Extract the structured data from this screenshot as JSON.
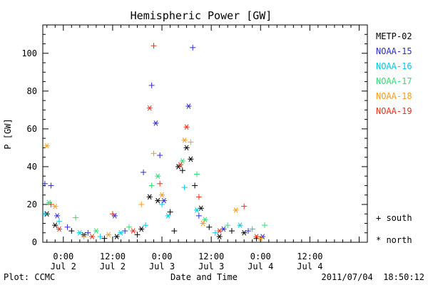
{
  "footer": {
    "left": "Plot: CCMC",
    "center": "Date and Time",
    "right": "2011/07/04  18:50:12"
  },
  "chart_data": {
    "type": "scatter",
    "title": "Hemispheric Power [GW]",
    "ylabel": "P [GW]",
    "xlabel": "Date and Time",
    "ylim": [
      0,
      115
    ],
    "xlim": [
      "2011-07-01T19:00",
      "2011-07-05T02:00"
    ],
    "y_ticks": [
      0,
      20,
      40,
      60,
      80,
      100
    ],
    "x_ticks": [
      {
        "t": "2011-07-02T00:00",
        "line1": "0:00",
        "line2": "Jul 2"
      },
      {
        "t": "2011-07-02T12:00",
        "line1": "12:00",
        "line2": "Jul 2"
      },
      {
        "t": "2011-07-03T00:00",
        "line1": "0:00",
        "line2": "Jul 3"
      },
      {
        "t": "2011-07-03T12:00",
        "line1": "12:00",
        "line2": "Jul 3"
      },
      {
        "t": "2011-07-04T00:00",
        "line1": "0:00",
        "line2": "Jul 4"
      },
      {
        "t": "2011-07-04T12:00",
        "line1": "12:00",
        "line2": "Jul 4"
      }
    ],
    "marker_legend": [
      {
        "symbol": "+",
        "label": "south"
      },
      {
        "symbol": "*",
        "label": "north"
      }
    ],
    "series": [
      {
        "name": "METP-02",
        "color": "#000000",
        "points": [
          {
            "t": "2011-07-01T20:00",
            "y": 15,
            "m": "*"
          },
          {
            "t": "2011-07-01T22:00",
            "y": 9,
            "m": "*"
          },
          {
            "t": "2011-07-02T02:00",
            "y": 6,
            "m": "+"
          },
          {
            "t": "2011-07-02T05:00",
            "y": 4,
            "m": "*"
          },
          {
            "t": "2011-07-02T10:00",
            "y": 2,
            "m": "+"
          },
          {
            "t": "2011-07-02T13:00",
            "y": 3,
            "m": "*"
          },
          {
            "t": "2011-07-02T18:00",
            "y": 4,
            "m": "+"
          },
          {
            "t": "2011-07-02T19:00",
            "y": 7,
            "m": "*"
          },
          {
            "t": "2011-07-02T21:00",
            "y": 24,
            "m": "*"
          },
          {
            "t": "2011-07-02T23:00",
            "y": 22,
            "m": "*"
          },
          {
            "t": "2011-07-03T02:00",
            "y": 16,
            "m": "+"
          },
          {
            "t": "2011-07-03T03:00",
            "y": 6,
            "m": "+"
          },
          {
            "t": "2011-07-03T04:00",
            "y": 40,
            "m": "*"
          },
          {
            "t": "2011-07-03T05:00",
            "y": 38,
            "m": "+"
          },
          {
            "t": "2011-07-03T06:00",
            "y": 50,
            "m": "*"
          },
          {
            "t": "2011-07-03T07:00",
            "y": 44,
            "m": "*"
          },
          {
            "t": "2011-07-03T08:00",
            "y": 30,
            "m": "+"
          },
          {
            "t": "2011-07-03T09:30",
            "y": 18,
            "m": "*"
          },
          {
            "t": "2011-07-03T11:30",
            "y": 8,
            "m": "+"
          },
          {
            "t": "2011-07-03T14:00",
            "y": 3,
            "m": "*"
          },
          {
            "t": "2011-07-03T17:00",
            "y": 6,
            "m": "+"
          },
          {
            "t": "2011-07-03T20:00",
            "y": 5,
            "m": "*"
          },
          {
            "t": "2011-07-03T23:00",
            "y": 2,
            "m": "+"
          }
        ]
      },
      {
        "name": "NOAA-15",
        "color": "#2b2bd6",
        "points": [
          {
            "t": "2011-07-01T19:30",
            "y": 31,
            "m": "+"
          },
          {
            "t": "2011-07-01T21:00",
            "y": 30,
            "m": "+"
          },
          {
            "t": "2011-07-01T22:30",
            "y": 14,
            "m": "*"
          },
          {
            "t": "2011-07-02T01:00",
            "y": 8,
            "m": "+"
          },
          {
            "t": "2011-07-02T06:00",
            "y": 5,
            "m": "+"
          },
          {
            "t": "2011-07-02T12:30",
            "y": 14,
            "m": "*"
          },
          {
            "t": "2011-07-02T15:00",
            "y": 6,
            "m": "+"
          },
          {
            "t": "2011-07-02T19:30",
            "y": 37,
            "m": "+"
          },
          {
            "t": "2011-07-02T21:30",
            "y": 83,
            "m": "+"
          },
          {
            "t": "2011-07-02T22:30",
            "y": 63,
            "m": "*"
          },
          {
            "t": "2011-07-02T23:30",
            "y": 46,
            "m": "+"
          },
          {
            "t": "2011-07-03T00:30",
            "y": 22,
            "m": "*"
          },
          {
            "t": "2011-07-03T06:30",
            "y": 72,
            "m": "*"
          },
          {
            "t": "2011-07-03T07:30",
            "y": 103,
            "m": "+"
          },
          {
            "t": "2011-07-03T09:00",
            "y": 14,
            "m": "+"
          },
          {
            "t": "2011-07-03T15:00",
            "y": 7,
            "m": "*"
          },
          {
            "t": "2011-07-03T21:00",
            "y": 6,
            "m": "+"
          },
          {
            "t": "2011-07-04T00:30",
            "y": 3,
            "m": "*"
          }
        ]
      },
      {
        "name": "NOAA-16",
        "color": "#00c8e6",
        "points": [
          {
            "t": "2011-07-01T19:30",
            "y": 15,
            "m": "+"
          },
          {
            "t": "2011-07-01T23:00",
            "y": 11,
            "m": "+"
          },
          {
            "t": "2011-07-02T04:00",
            "y": 5,
            "m": "*"
          },
          {
            "t": "2011-07-02T09:00",
            "y": 3,
            "m": "+"
          },
          {
            "t": "2011-07-02T14:00",
            "y": 5,
            "m": "*"
          },
          {
            "t": "2011-07-02T20:00",
            "y": 9,
            "m": "+"
          },
          {
            "t": "2011-07-03T00:00",
            "y": 20,
            "m": "+"
          },
          {
            "t": "2011-07-03T01:30",
            "y": 14,
            "m": "*"
          },
          {
            "t": "2011-07-03T05:30",
            "y": 29,
            "m": "+"
          },
          {
            "t": "2011-07-03T08:30",
            "y": 17,
            "m": "*"
          },
          {
            "t": "2011-07-03T13:00",
            "y": 5,
            "m": "+"
          },
          {
            "t": "2011-07-03T19:00",
            "y": 9,
            "m": "*"
          },
          {
            "t": "2011-07-03T22:00",
            "y": 7,
            "m": "+"
          }
        ]
      },
      {
        "name": "NOAA-17",
        "color": "#33dd77",
        "points": [
          {
            "t": "2011-07-01T20:30",
            "y": 21,
            "m": "*"
          },
          {
            "t": "2011-07-02T03:00",
            "y": 13,
            "m": "+"
          },
          {
            "t": "2011-07-02T08:00",
            "y": 6,
            "m": "*"
          },
          {
            "t": "2011-07-02T16:00",
            "y": 8,
            "m": "+"
          },
          {
            "t": "2011-07-02T21:30",
            "y": 30,
            "m": "+"
          },
          {
            "t": "2011-07-02T23:00",
            "y": 35,
            "m": "*"
          },
          {
            "t": "2011-07-03T05:00",
            "y": 43,
            "m": "*"
          },
          {
            "t": "2011-07-03T08:30",
            "y": 36,
            "m": "+"
          },
          {
            "t": "2011-07-03T10:30",
            "y": 12,
            "m": "*"
          },
          {
            "t": "2011-07-03T16:00",
            "y": 9,
            "m": "+"
          },
          {
            "t": "2011-07-04T01:00",
            "y": 9,
            "m": "+"
          }
        ]
      },
      {
        "name": "NOAA-18",
        "color": "#ff9a1a",
        "points": [
          {
            "t": "2011-07-01T20:00",
            "y": 51,
            "m": "*"
          },
          {
            "t": "2011-07-01T22:00",
            "y": 19,
            "m": "*"
          },
          {
            "t": "2011-07-02T05:00",
            "y": 3,
            "m": "+"
          },
          {
            "t": "2011-07-02T11:00",
            "y": 4,
            "m": "*"
          },
          {
            "t": "2011-07-02T19:00",
            "y": 20,
            "m": "+"
          },
          {
            "t": "2011-07-02T22:00",
            "y": 47,
            "m": "+"
          },
          {
            "t": "2011-07-03T00:00",
            "y": 25,
            "m": "*"
          },
          {
            "t": "2011-07-03T05:30",
            "y": 54,
            "m": "*"
          },
          {
            "t": "2011-07-03T07:00",
            "y": 53,
            "m": "+"
          },
          {
            "t": "2011-07-03T10:00",
            "y": 10,
            "m": "*"
          },
          {
            "t": "2011-07-03T18:00",
            "y": 17,
            "m": "*"
          },
          {
            "t": "2011-07-04T00:00",
            "y": 2,
            "m": "*"
          }
        ]
      },
      {
        "name": "NOAA-19",
        "color": "#e8331a",
        "points": [
          {
            "t": "2011-07-01T21:00",
            "y": 20,
            "m": "+"
          },
          {
            "t": "2011-07-01T23:00",
            "y": 7,
            "m": "*"
          },
          {
            "t": "2011-07-02T07:00",
            "y": 3,
            "m": "*"
          },
          {
            "t": "2011-07-02T12:00",
            "y": 15,
            "m": "+"
          },
          {
            "t": "2011-07-02T17:00",
            "y": 6,
            "m": "*"
          },
          {
            "t": "2011-07-02T21:00",
            "y": 71,
            "m": "*"
          },
          {
            "t": "2011-07-02T22:00",
            "y": 104,
            "m": "+"
          },
          {
            "t": "2011-07-02T23:30",
            "y": 31,
            "m": "+"
          },
          {
            "t": "2011-07-03T04:30",
            "y": 41,
            "m": "*"
          },
          {
            "t": "2011-07-03T06:00",
            "y": 61,
            "m": "*"
          },
          {
            "t": "2011-07-03T09:00",
            "y": 24,
            "m": "+"
          },
          {
            "t": "2011-07-03T14:00",
            "y": 6,
            "m": "*"
          },
          {
            "t": "2011-07-03T20:00",
            "y": 19,
            "m": "+"
          },
          {
            "t": "2011-07-03T23:00",
            "y": 3,
            "m": "*"
          }
        ]
      }
    ]
  }
}
